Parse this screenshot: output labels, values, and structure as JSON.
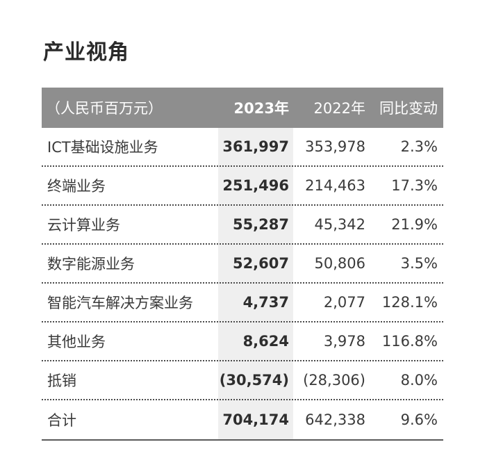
{
  "title": "产业视角",
  "table": {
    "headers": [
      "（人民币百万元）",
      "2023年",
      "2022年",
      "同比变动"
    ],
    "rows": [
      {
        "name": "ICT基础设施业务",
        "y2023": "361,997",
        "y2022": "353,978",
        "change": "2.3%"
      },
      {
        "name": "终端业务",
        "y2023": "251,496",
        "y2022": "214,463",
        "change": "17.3%"
      },
      {
        "name": "云计算业务",
        "y2023": "55,287",
        "y2022": "45,342",
        "change": "21.9%"
      },
      {
        "name": "数字能源业务",
        "y2023": "52,607",
        "y2022": "50,806",
        "change": "3.5%"
      },
      {
        "name": "智能汽车解决方案业务",
        "y2023": "4,737",
        "y2022": "2,077",
        "change": "128.1%"
      },
      {
        "name": "其他业务",
        "y2023": "8,624",
        "y2022": "3,978",
        "change": "116.8%"
      },
      {
        "name": "抵销",
        "y2023": "(30,574)",
        "y2022": "(28,306)",
        "change": "8.0%"
      },
      {
        "name": "合计",
        "y2023": "704,174",
        "y2022": "642,338",
        "change": "9.6%"
      }
    ]
  },
  "colors": {
    "header_bg": "#8e8e8e",
    "highlight_col": "#efefef",
    "text": "#3a3a3a"
  }
}
